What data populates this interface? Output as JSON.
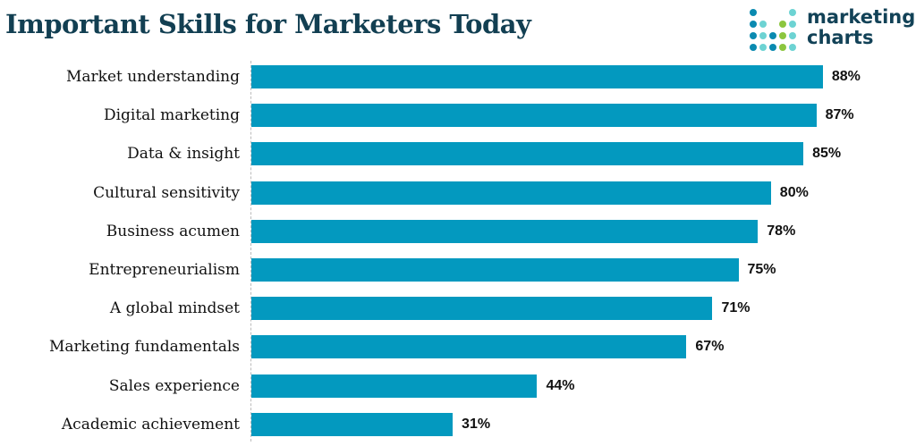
{
  "title": "Important Skills for Marketers Today",
  "logo": {
    "line1": "marketing",
    "line2": "charts"
  },
  "colors": {
    "bar": "#0399bf",
    "title": "#123f52",
    "logo_dark": "#0a8ab0",
    "logo_light": "#6dd3d3",
    "logo_green": "#8cc63f"
  },
  "chart_data": {
    "type": "bar",
    "orientation": "horizontal",
    "title": "Important Skills for Marketers Today",
    "xlabel": "",
    "ylabel": "",
    "xlim": [
      0,
      100
    ],
    "grid": false,
    "legend": "none",
    "value_format": "percent",
    "categories": [
      "Market understanding",
      "Digital marketing",
      "Data & insight",
      "Cultural sensitivity",
      "Business acumen",
      "Entrepreneurialism",
      "A global mindset",
      "Marketing fundamentals",
      "Sales experience",
      "Academic achievement"
    ],
    "values": [
      88,
      87,
      85,
      80,
      78,
      75,
      71,
      67,
      44,
      31
    ],
    "value_labels": [
      "88%",
      "87%",
      "85%",
      "80%",
      "78%",
      "75%",
      "71%",
      "67%",
      "44%",
      "31%"
    ]
  }
}
